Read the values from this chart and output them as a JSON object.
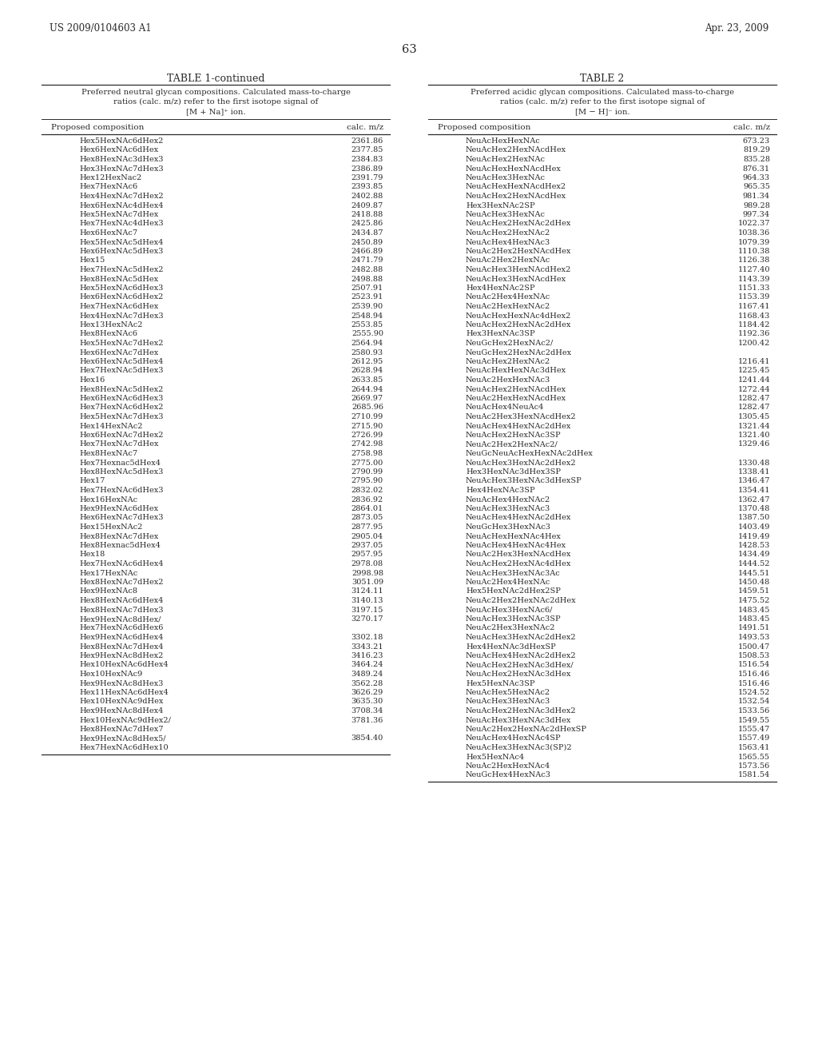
{
  "header_left": "US 2009/0104603 A1",
  "header_right": "Apr. 23, 2009",
  "page_number": "63",
  "table1_title": "TABLE 1-continued",
  "table1_subtitle": "Preferred neutral glycan compositions. Calculated mass-to-charge\nratios (calc. m/z) refer to the first isotope signal of\n[M + Na]⁺ ion.",
  "table1_col1": "Proposed composition",
  "table1_col2": "calc. m/z",
  "table1_data": [
    [
      "Hex5HexNAc6dHex2",
      "2361.86"
    ],
    [
      "Hex6HexNAc6dHex",
      "2377.85"
    ],
    [
      "Hex8HexNAc3dHex3",
      "2384.83"
    ],
    [
      "Hex3HexNAc7dHex3",
      "2386.89"
    ],
    [
      "Hex12HexNac2",
      "2391.79"
    ],
    [
      "Hex7HexNAc6",
      "2393.85"
    ],
    [
      "Hex4HexNAc7dHex2",
      "2402.88"
    ],
    [
      "Hex6HexNAc4dHex4",
      "2409.87"
    ],
    [
      "Hex5HexNAc7dHex",
      "2418.88"
    ],
    [
      "Hex7HexNAc4dHex3",
      "2425.86"
    ],
    [
      "Hex6HexNAc7",
      "2434.87"
    ],
    [
      "Hex5HexNAc5dHex4",
      "2450.89"
    ],
    [
      "Hex6HexNAc5dHex3",
      "2466.89"
    ],
    [
      "Hex15",
      "2471.79"
    ],
    [
      "Hex7HexNAc5dHex2",
      "2482.88"
    ],
    [
      "Hex8HexNAc5dHex",
      "2498.88"
    ],
    [
      "Hex5HexNAc6dHex3",
      "2507.91"
    ],
    [
      "Hex6HexNAc6dHex2",
      "2523.91"
    ],
    [
      "Hex7HexNAc6dHex",
      "2539.90"
    ],
    [
      "Hex4HexNAc7dHex3",
      "2548.94"
    ],
    [
      "Hex13HexNAc2",
      "2553.85"
    ],
    [
      "Hex8HexNAc6",
      "2555.90"
    ],
    [
      "Hex5HexNAc7dHex2",
      "2564.94"
    ],
    [
      "Hex6HexNAc7dHex",
      "2580.93"
    ],
    [
      "Hex6HexNAc5dHex4",
      "2612.95"
    ],
    [
      "Hex7HexNAc5dHex3",
      "2628.94"
    ],
    [
      "Hex16",
      "2633.85"
    ],
    [
      "Hex8HexNAc5dHex2",
      "2644.94"
    ],
    [
      "Hex6HexNAc6dHex3",
      "2669.97"
    ],
    [
      "Hex7HexNAc6dHex2",
      "2685.96"
    ],
    [
      "Hex5HexNAc7dHex3",
      "2710.99"
    ],
    [
      "Hex14HexNAc2",
      "2715.90"
    ],
    [
      "Hex6HexNAc7dHex2",
      "2726.99"
    ],
    [
      "Hex7HexNAc7dHex",
      "2742.98"
    ],
    [
      "Hex8HexNAc7",
      "2758.98"
    ],
    [
      "Hex7Hexnac5dHex4",
      "2775.00"
    ],
    [
      "Hex8HexNAc5dHex3",
      "2790.99"
    ],
    [
      "Hex17",
      "2795.90"
    ],
    [
      "Hex7HexNAc6dHex3",
      "2832.02"
    ],
    [
      "Hex16HexNAc",
      "2836.92"
    ],
    [
      "Hex9HexNAc6dHex",
      "2864.01"
    ],
    [
      "Hex6HexNAc7dHex3",
      "2873.05"
    ],
    [
      "Hex15HexNAc2",
      "2877.95"
    ],
    [
      "Hex8HexNAc7dHex",
      "2905.04"
    ],
    [
      "Hex8Hexnac5dHex4",
      "2937.05"
    ],
    [
      "Hex18",
      "2957.95"
    ],
    [
      "Hex7HexNAc6dHex4",
      "2978.08"
    ],
    [
      "Hex17HexNAc",
      "2998.98"
    ],
    [
      "Hex8HexNAc7dHex2",
      "3051.09"
    ],
    [
      "Hex9HexNAc8",
      "3124.11"
    ],
    [
      "Hex8HexNAc6dHex4",
      "3140.13"
    ],
    [
      "Hex8HexNAc7dHex3",
      "3197.15"
    ],
    [
      "Hex9HexNAc8dHex/",
      "3270.17"
    ],
    [
      "Hex7HexNAc6dHex6",
      ""
    ],
    [
      "Hex9HexNAc6dHex4",
      "3302.18"
    ],
    [
      "Hex8HexNAc7dHex4",
      "3343.21"
    ],
    [
      "Hex9HexNAc8dHex2",
      "3416.23"
    ],
    [
      "Hex10HexNAc6dHex4",
      "3464.24"
    ],
    [
      "Hex10HexNAc9",
      "3489.24"
    ],
    [
      "Hex9HexNAc8dHex3",
      "3562.28"
    ],
    [
      "Hex11HexNAc6dHex4",
      "3626.29"
    ],
    [
      "Hex10HexNAc9dHex",
      "3635.30"
    ],
    [
      "Hex9HexNAc8dHex4",
      "3708.34"
    ],
    [
      "Hex10HexNAc9dHex2/",
      "3781.36"
    ],
    [
      "Hex8HexNAc7dHex7",
      ""
    ],
    [
      "Hex9HexNAc8dHex5/",
      "3854.40"
    ],
    [
      "Hex7HexNAc6dHex10",
      ""
    ]
  ],
  "table2_title": "TABLE 2",
  "table2_subtitle": "Preferred acidic glycan compositions. Calculated mass-to-charge\nratios (calc. m/z) refer to the first isotope signal of\n[M − H]⁻ ion.",
  "table2_col1": "Proposed composition",
  "table2_col2": "calc. m/z",
  "table2_data": [
    [
      "NeuAcHexHexNAc",
      "673.23"
    ],
    [
      "NeuAcHex2HexNAcdHex",
      "819.29"
    ],
    [
      "NeuAcHex2HexNAc",
      "835.28"
    ],
    [
      "NeuAcHexHexNAcdHex",
      "876.31"
    ],
    [
      "NeuAcHex3HexNAc",
      "964.33"
    ],
    [
      "NeuAcHexHexNAcdHex2",
      "965.35"
    ],
    [
      "NeuAcHex2HexNAcdHex",
      "981.34"
    ],
    [
      "Hex3HexNAc2SP",
      "989.28"
    ],
    [
      "NeuAcHex3HexNAc",
      "997.34"
    ],
    [
      "NeuAcHex2HexNAc2dHex",
      "1022.37"
    ],
    [
      "NeuAcHex2HexNAc2",
      "1038.36"
    ],
    [
      "NeuAcHex4HexNAc3",
      "1079.39"
    ],
    [
      "NeuAc2Hex2HexNAcdHex",
      "1110.38"
    ],
    [
      "NeuAc2Hex2HexNAc",
      "1126.38"
    ],
    [
      "NeuAcHex3HexNAcdHex2",
      "1127.40"
    ],
    [
      "NeuAcHex3HexNAcdHex",
      "1143.39"
    ],
    [
      "Hex4HexNAc2SP",
      "1151.33"
    ],
    [
      "NeuAc2Hex4HexNAc",
      "1153.39"
    ],
    [
      "NeuAc2HexHexNAc2",
      "1167.41"
    ],
    [
      "NeuAcHexHexNAc4dHex2",
      "1168.43"
    ],
    [
      "NeuAcHex2HexNAc2dHex",
      "1184.42"
    ],
    [
      "Hex3HexNAc3SP",
      "1192.36"
    ],
    [
      "NeuGcHex2HexNAc2/",
      "1200.42"
    ],
    [
      "NeuGcHex2HexNAc2dHex",
      ""
    ],
    [
      "NeuAcHex2HexNAc2",
      "1216.41"
    ],
    [
      "NeuAcHexHexNAc3dHex",
      "1225.45"
    ],
    [
      "NeuAc2HexHexNAc3",
      "1241.44"
    ],
    [
      "NeuAcHex2HexNAcdHex",
      "1272.44"
    ],
    [
      "NeuAc2HexHexNAcdHex",
      "1282.47"
    ],
    [
      "NeuAcHex4NeuAc4",
      "1282.47"
    ],
    [
      "NeuAc2Hex3HexNAcdHex2",
      "1305.45"
    ],
    [
      "NeuAcHex4HexNAc2dHex",
      "1321.44"
    ],
    [
      "NeuAcHex2HexNAc3SP",
      "1321.40"
    ],
    [
      "NeuAc2Hex2HexNAc2/",
      "1329.46"
    ],
    [
      "NeuGcNeuAcHexHexNAc2dHex",
      ""
    ],
    [
      "NeuAcHex3HexNAc2dHex2",
      "1330.48"
    ],
    [
      "Hex3HexNAc3dHex3SP",
      "1338.41"
    ],
    [
      "NeuAcHex3HexNAc3dHexSP",
      "1346.47"
    ],
    [
      "Hex4HexNAc3SP",
      "1354.41"
    ],
    [
      "NeuAcHex4HexNAc2",
      "1362.47"
    ],
    [
      "NeuAcHex3HexNAc3",
      "1370.48"
    ],
    [
      "NeuAcHex4HexNAc2dHex",
      "1387.50"
    ],
    [
      "NeuGcHex3HexNAc3",
      "1403.49"
    ],
    [
      "NeuAcHexHexNAc4Hex",
      "1419.49"
    ],
    [
      "NeuAcHex4HexNAc4Hex",
      "1428.53"
    ],
    [
      "NeuAc2Hex3HexNAcdHex",
      "1434.49"
    ],
    [
      "NeuAcHex2HexNAc4dHex",
      "1444.52"
    ],
    [
      "NeuAcHex3HexNAc3Ac",
      "1445.51"
    ],
    [
      "NeuAc2Hex4HexNAc",
      "1450.48"
    ],
    [
      "Hex5HexNAc2dHex2SP",
      "1459.51"
    ],
    [
      "NeuAc2Hex2HexNAc2dHex",
      "1475.52"
    ],
    [
      "NeuAcHex3HexNAc6/",
      "1483.45"
    ],
    [
      "NeuAcHex3HexNAc3SP",
      "1483.45"
    ],
    [
      "NeuAc2Hex3HexNAc2",
      "1491.51"
    ],
    [
      "NeuAcHex3HexNAc2dHex2",
      "1493.53"
    ],
    [
      "Hex4HexNAc3dHexSP",
      "1500.47"
    ],
    [
      "NeuAcHex4HexNAc2dHex2",
      "1508.53"
    ],
    [
      "NeuAcHex2HexNAc3dHex/",
      "1516.54"
    ],
    [
      "NeuAcHex2HexNAc3dHex",
      "1516.46"
    ],
    [
      "Hex5HexNAc3SP",
      "1516.46"
    ],
    [
      "NeuAcHex5HexNAc2",
      "1524.52"
    ],
    [
      "NeuAcHex3HexNAc3",
      "1532.54"
    ],
    [
      "NeuAcHex2HexNAc3dHex2",
      "1533.56"
    ],
    [
      "NeuAcHex3HexNAc3dHex",
      "1549.55"
    ],
    [
      "NeuAc2Hex2HexNAc2dHexSP",
      "1555.47"
    ],
    [
      "NeuAcHex4HexNAc4SP",
      "1557.49"
    ],
    [
      "NeuAcHex3HexNAc3(SP)2",
      "1563.41"
    ],
    [
      "Hex5HexNAc4",
      "1565.55"
    ],
    [
      "NeuAc2HexHexNAc4",
      "1573.56"
    ],
    [
      "NeuGcHex4HexNAc3",
      "1581.54"
    ]
  ],
  "bg_color": "#ffffff",
  "text_color": "#2a2a2a",
  "line_color": "#2a2a2a",
  "header_fontsize": 8.5,
  "title_fontsize": 9.0,
  "subtitle_fontsize": 7.2,
  "col_header_fontsize": 7.5,
  "data_fontsize": 7.0,
  "page_num_fontsize": 10.5
}
